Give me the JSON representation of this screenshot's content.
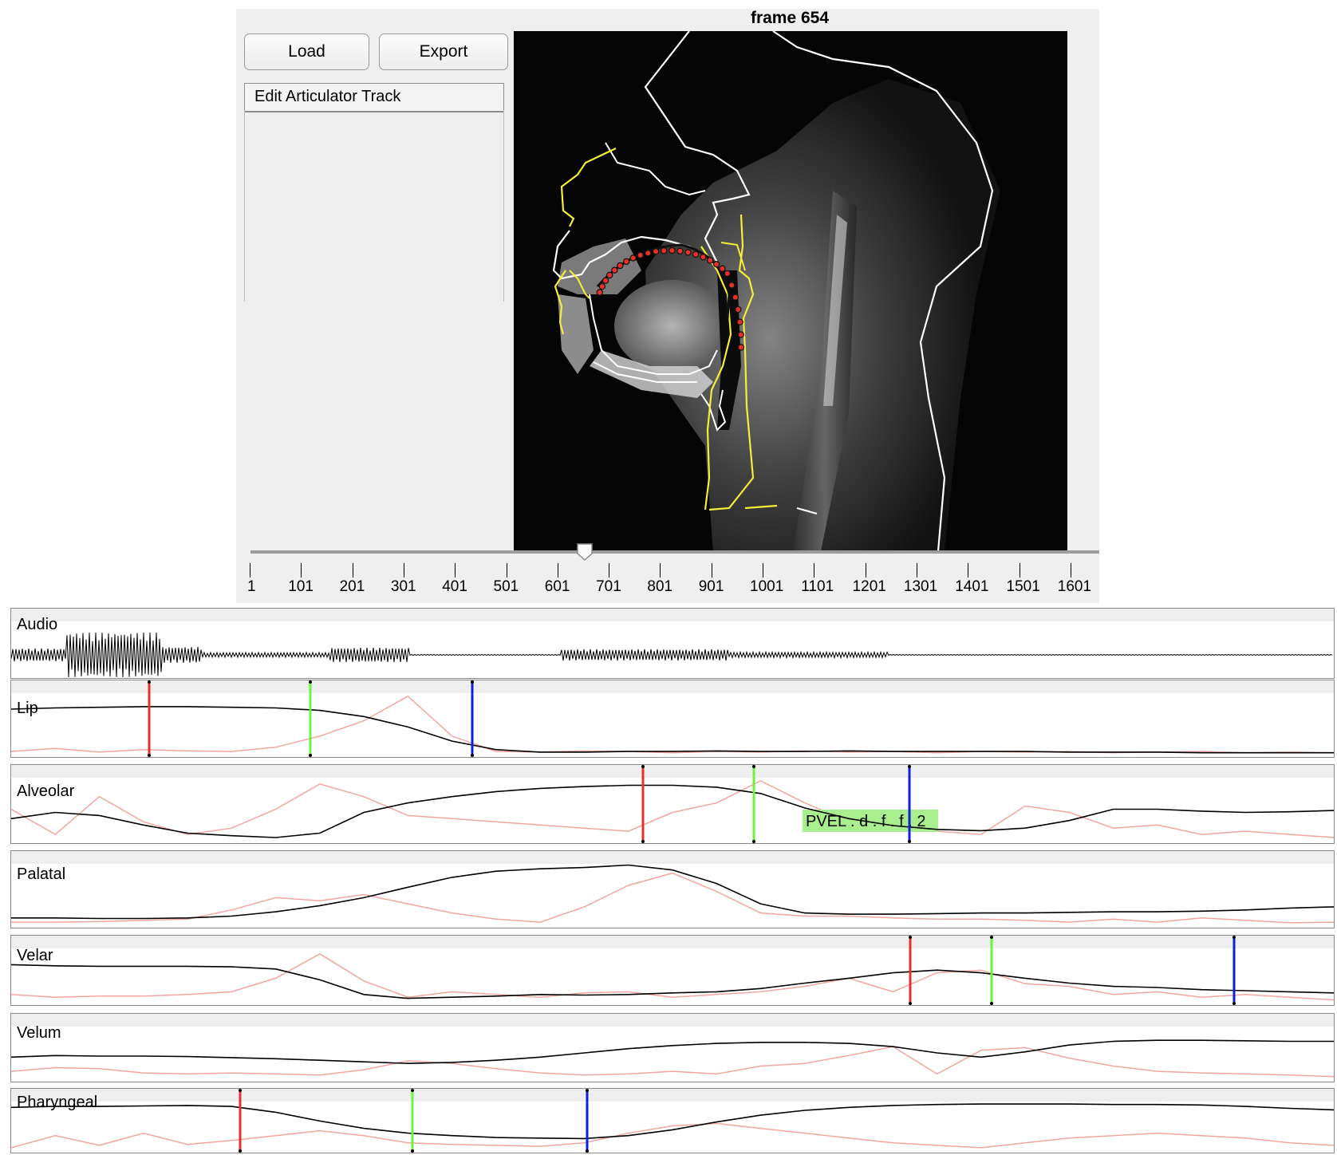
{
  "frame_title": "frame 654",
  "toolbar": {
    "load_label": "Load",
    "export_label": "Export"
  },
  "menu": {
    "label": "Edit Articulator Track"
  },
  "slider": {
    "ticks": [
      "1",
      "101",
      "201",
      "301",
      "401",
      "501",
      "601",
      "701",
      "801",
      "901",
      "1001",
      "1101",
      "1201",
      "1301",
      "1401",
      "1501",
      "1601"
    ],
    "current_frame": 654
  },
  "tracks": [
    {
      "label": "Audio"
    },
    {
      "label": "Lip"
    },
    {
      "label": "Alveolar",
      "annotation": "PVEL . d . f . f . 2"
    },
    {
      "label": "Palatal"
    },
    {
      "label": "Velar"
    },
    {
      "label": "Velum"
    },
    {
      "label": "Pharyngeal"
    }
  ],
  "colors": {
    "onset": "#e8302a",
    "peak": "#6ef23a",
    "offset": "#1020d8",
    "velocity": "#f2a6a0",
    "annotation_bg": "#a9ef8e",
    "contour": "#ffffff",
    "outline": "#f5ee38"
  }
}
